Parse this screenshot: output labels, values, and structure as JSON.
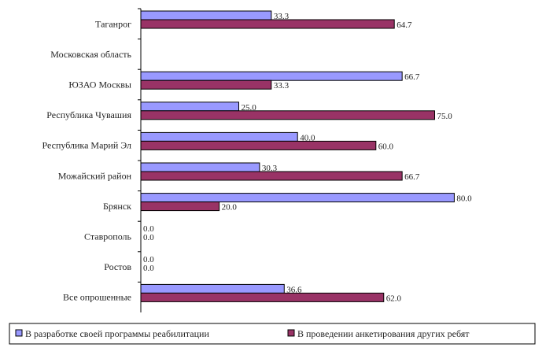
{
  "chart_data": {
    "type": "bar",
    "orientation": "horizontal",
    "categories": [
      "Таганрог",
      "Московская область",
      "ЮЗАО Москвы",
      "Республика Чувашия",
      "Республика Марий Эл",
      "Можайский район",
      "Брянск",
      "Ставрополь",
      "Ростов",
      "Все опрошенные"
    ],
    "series": [
      {
        "name": "В разработке своей программы реабилитации",
        "color": "#9999ff",
        "values": [
          33.3,
          null,
          66.7,
          25.0,
          40.0,
          30.3,
          80.0,
          0.0,
          0.0,
          36.6
        ],
        "labels": [
          "33.3",
          "",
          "66.7",
          "25.0",
          "40.0",
          "30.3",
          "80.0",
          "0.0",
          "0.0",
          "36.6"
        ]
      },
      {
        "name": "В проведении анкетирования других ребят",
        "color": "#993366",
        "values": [
          64.7,
          null,
          33.3,
          75.0,
          60.0,
          66.7,
          20.0,
          0.0,
          0.0,
          62.0
        ],
        "labels": [
          "64.7",
          "",
          "33.3",
          "75.0",
          "60.0",
          "66.7",
          "20.0",
          "0.0",
          "0.0",
          "62.0"
        ]
      }
    ],
    "xlim": [
      0,
      100
    ],
    "grid": false,
    "legend_position": "bottom"
  }
}
